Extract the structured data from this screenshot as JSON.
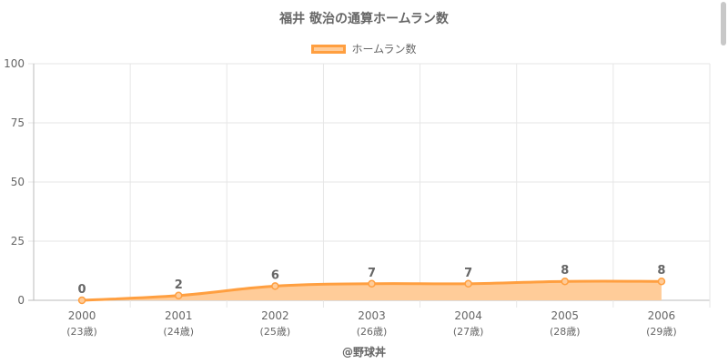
{
  "chart_data": {
    "type": "area",
    "title": "福井 敬治の通算ホームラン数",
    "legend": {
      "position": "top",
      "label": "ホームラン数"
    },
    "categories": [
      "2000",
      "2001",
      "2002",
      "2003",
      "2004",
      "2005",
      "2006"
    ],
    "category_sublabels": [
      "(23歳)",
      "(24歳)",
      "(25歳)",
      "(26歳)",
      "(27歳)",
      "(28歳)",
      "(29歳)"
    ],
    "series": [
      {
        "name": "ホームラン数",
        "values": [
          0,
          2,
          6,
          7,
          7,
          8,
          8
        ]
      }
    ],
    "data_labels": [
      "0",
      "2",
      "6",
      "7",
      "7",
      "8",
      "8"
    ],
    "y_ticks": [
      "0",
      "25",
      "50",
      "75",
      "100"
    ],
    "ylim": [
      0,
      100
    ],
    "grid": true,
    "line_color": "#ff9f40",
    "fill_color": "#ffcc99"
  },
  "credit": "@野球丼"
}
